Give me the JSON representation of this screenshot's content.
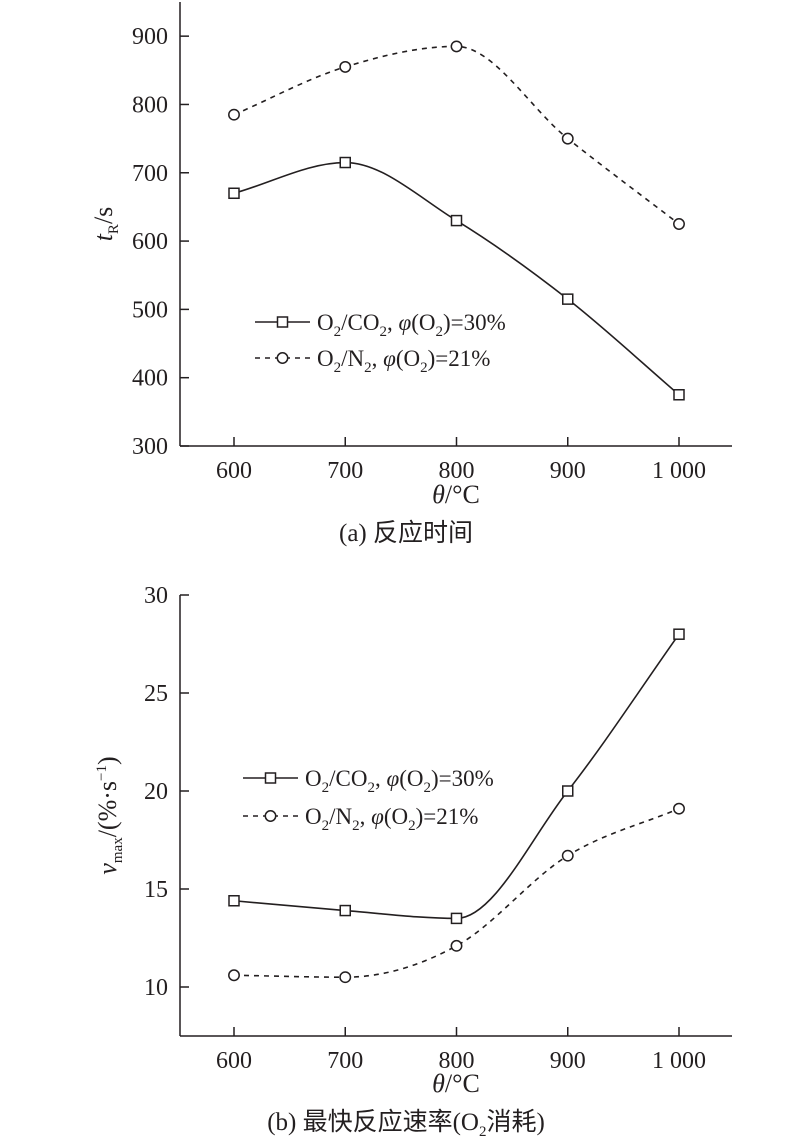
{
  "chart_data": [
    {
      "type": "line",
      "caption": "(a) 反应时间",
      "xlabel_italic": "θ",
      "xlabel_rest": "/°C",
      "ylabel_italic": "t",
      "ylabel_sub": "R",
      "ylabel_rest": "/s",
      "x": [
        600,
        700,
        800,
        900,
        1000
      ],
      "x_tick_labels": [
        "600",
        "700",
        "800",
        "900",
        "1 000"
      ],
      "ylim": [
        300,
        950
      ],
      "y_ticks": [
        300,
        400,
        500,
        600,
        700,
        800,
        900
      ],
      "series": [
        {
          "name": "O2/CO2, φ(O2)=30%",
          "marker": "square",
          "line": "solid",
          "values": [
            670,
            715,
            630,
            515,
            375
          ],
          "legend_parts": {
            "a": "O",
            "a_sub": "2",
            "b": "/CO",
            "b_sub": "2",
            "c": ", ",
            "phi": "φ",
            "d": "(O",
            "d_sub": "2",
            "e": ")=30%"
          }
        },
        {
          "name": "O2/N2, φ(O2)=21%",
          "marker": "circle",
          "line": "dashed",
          "values": [
            785,
            855,
            885,
            750,
            625
          ],
          "legend_parts": {
            "a": "O",
            "a_sub": "2",
            "b": "/N",
            "b_sub": "2",
            "c": ", ",
            "phi": "φ",
            "d": "(O",
            "d_sub": "2",
            "e": ")=21%"
          }
        }
      ],
      "legend_position": "center-left",
      "grid": false
    },
    {
      "type": "line",
      "caption_parts": {
        "a": "(b) 最快反应速率(O",
        "a_sub": "2",
        "b": "消耗)"
      },
      "caption": "(b) 最快反应速率(O2消耗)",
      "xlabel_italic": "θ",
      "xlabel_rest": "/°C",
      "ylabel_italic": "v",
      "ylabel_sub": "max",
      "ylabel_rest": "/(%·s",
      "ylabel_sup": "−1",
      "ylabel_close": ")",
      "x": [
        600,
        700,
        800,
        900,
        1000
      ],
      "x_tick_labels": [
        "600",
        "700",
        "800",
        "900",
        "1 000"
      ],
      "ylim": [
        7.5,
        30
      ],
      "y_ticks": [
        10,
        15,
        20,
        25,
        30
      ],
      "series": [
        {
          "name": "O2/CO2, φ(O2)=30%",
          "marker": "square",
          "line": "solid",
          "values": [
            14.4,
            13.9,
            13.5,
            20.0,
            28.0
          ],
          "legend_parts": {
            "a": "O",
            "a_sub": "2",
            "b": "/CO",
            "b_sub": "2",
            "c": ", ",
            "phi": "φ",
            "d": "(O",
            "d_sub": "2",
            "e": ")=30%"
          }
        },
        {
          "name": "O2/N2, φ(O2)=21%",
          "marker": "circle",
          "line": "dashed",
          "values": [
            10.6,
            10.5,
            12.1,
            16.7,
            19.1
          ],
          "legend_parts": {
            "a": "O",
            "a_sub": "2",
            "b": "/N",
            "b_sub": "2",
            "c": ", ",
            "phi": "φ",
            "d": "(O",
            "d_sub": "2",
            "e": ")=21%"
          }
        }
      ],
      "legend_position": "center-left",
      "grid": false
    }
  ]
}
